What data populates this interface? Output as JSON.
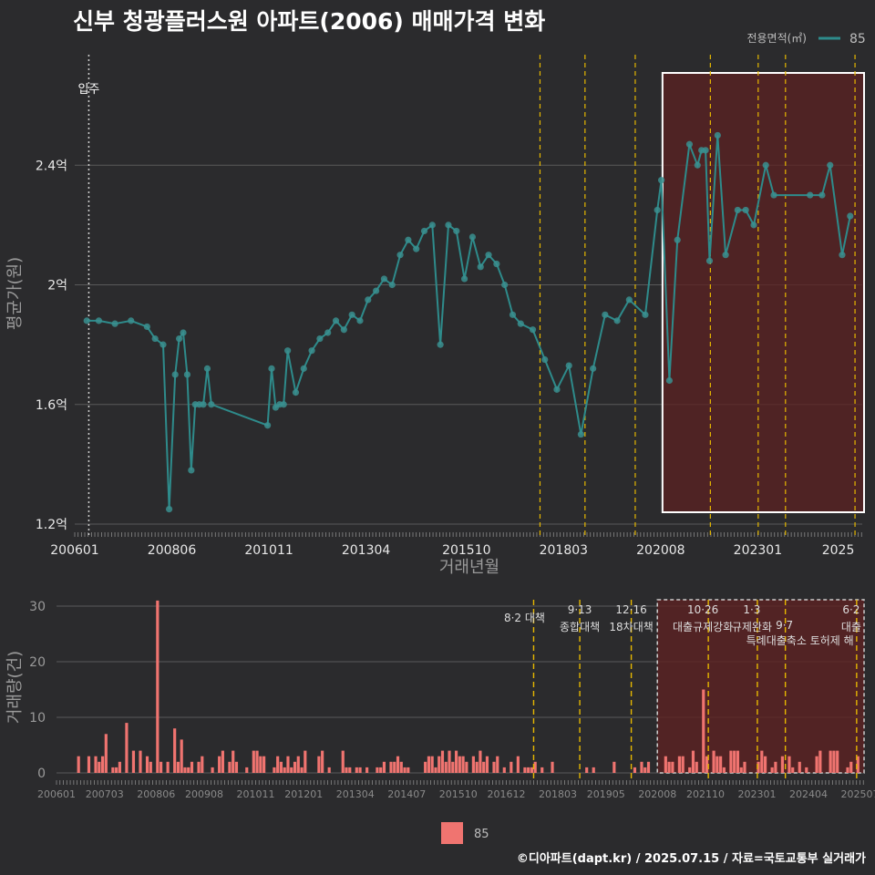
{
  "title": "신부 청광플러스원 아파트(2006) 매매가격 변화",
  "credit": "©디아파트(dapt.kr) / 2025.07.15 / 자료=국토교통부 실거래가",
  "colors": {
    "background": "#2b2b2d",
    "price_line": "#2e8b8b",
    "price_point": "#3a8f8f",
    "volume_bar": "#f07470",
    "policy_line": "#e6b800",
    "highlight_fill": "#5c2222",
    "grid": "#5a5a5a"
  },
  "chart_data": [
    {
      "type": "line",
      "title": "신부 청광플러스원 아파트(2006) 매매가격 변화",
      "xlabel": "거래년월",
      "ylabel": "평균가(원)",
      "x_ticks": [
        "200601",
        "200806",
        "201011",
        "201304",
        "201510",
        "201803",
        "202008",
        "202301",
        "2025"
      ],
      "y_ticks": [
        "1.2억",
        "1.6억",
        "2억",
        "2.4억"
      ],
      "ylim": [
        1.2,
        2.8
      ],
      "y_unit": "억",
      "legend": {
        "title": "전용면적(㎡)",
        "items": [
          "85"
        ],
        "position": "top-right"
      },
      "annotation_move_in": {
        "label": "입주",
        "x": "2006.05"
      },
      "series": [
        {
          "name": "85",
          "x": [
            2006.3,
            2006.6,
            2007.0,
            2007.4,
            2007.8,
            2008.0,
            2008.2,
            2008.35,
            2008.5,
            2008.6,
            2008.7,
            2008.8,
            2008.9,
            2009.0,
            2009.1,
            2009.2,
            2009.3,
            2009.4,
            2010.8,
            2010.9,
            2011.0,
            2011.1,
            2011.2,
            2011.3,
            2011.5,
            2011.7,
            2011.9,
            2012.1,
            2012.3,
            2012.5,
            2012.7,
            2012.9,
            2013.1,
            2013.3,
            2013.5,
            2013.7,
            2013.9,
            2014.1,
            2014.3,
            2014.5,
            2014.7,
            2014.9,
            2015.1,
            2015.3,
            2015.5,
            2015.7,
            2015.9,
            2016.1,
            2016.3,
            2016.5,
            2016.7,
            2016.9,
            2017.1,
            2017.4,
            2017.7,
            2018.0,
            2018.3,
            2018.6,
            2018.9,
            2019.2,
            2019.5,
            2019.8,
            2020.2,
            2020.5,
            2020.6,
            2020.8,
            2021.0,
            2021.3,
            2021.5,
            2021.6,
            2021.7,
            2021.8,
            2022.0,
            2022.2,
            2022.5,
            2022.7,
            2022.9,
            2023.2,
            2023.4,
            2024.3,
            2024.6,
            2024.8,
            2025.1,
            2025.3
          ],
          "values": [
            1.88,
            1.88,
            1.87,
            1.88,
            1.86,
            1.82,
            1.8,
            1.25,
            1.7,
            1.82,
            1.84,
            1.7,
            1.38,
            1.6,
            1.6,
            1.6,
            1.72,
            1.6,
            1.53,
            1.72,
            1.59,
            1.6,
            1.6,
            1.78,
            1.64,
            1.72,
            1.78,
            1.82,
            1.84,
            1.88,
            1.85,
            1.9,
            1.88,
            1.95,
            1.98,
            2.02,
            2.0,
            2.1,
            2.15,
            2.12,
            2.18,
            2.2,
            1.8,
            2.2,
            2.18,
            2.02,
            2.16,
            2.06,
            2.1,
            2.07,
            2.0,
            1.9,
            1.87,
            1.85,
            1.75,
            1.65,
            1.73,
            1.5,
            1.72,
            1.9,
            1.88,
            1.95,
            1.9,
            2.25,
            2.35,
            1.68,
            2.15,
            2.47,
            2.4,
            2.45,
            2.45,
            2.08,
            2.5,
            2.1,
            2.25,
            2.25,
            2.2,
            2.4,
            2.3,
            2.3,
            2.3,
            2.4,
            2.1,
            2.23
          ]
        }
      ],
      "highlight": {
        "from": "202008",
        "to": "2025"
      }
    },
    {
      "type": "bar",
      "ylabel": "거래량(건)",
      "y_ticks": [
        "0",
        "10",
        "20",
        "30"
      ],
      "ylim": [
        0,
        33
      ],
      "x_ticks": [
        "200601",
        "200703",
        "200806",
        "200908",
        "201011",
        "201201",
        "201304",
        "201407",
        "201510",
        "201612",
        "201803",
        "201905",
        "202008",
        "202110",
        "202301",
        "202404",
        "202507"
      ],
      "legend": {
        "items": [
          "85"
        ],
        "position": "bottom"
      },
      "peaks": [
        {
          "x": 2008.4,
          "value": 31
        },
        {
          "x": 2021.7,
          "value": 15
        },
        {
          "x": 2008.8,
          "value": 8
        },
        {
          "x": 2007.7,
          "value": 9
        },
        {
          "x": 2007.2,
          "value": 7
        },
        {
          "x": 2009.0,
          "value": 6
        }
      ],
      "highlight": {
        "from": "202008",
        "to": "202507"
      }
    }
  ],
  "policies": [
    {
      "x": 2017.58,
      "date": "8·2",
      "label": "대책"
    },
    {
      "x": 2018.7,
      "date": "9·13",
      "label": "종합대책"
    },
    {
      "x": 2019.95,
      "date": "12·16",
      "label": "18차대책"
    },
    {
      "x": 2021.82,
      "date": "10·26",
      "label": "대출규제강화"
    },
    {
      "x": 2023.01,
      "date": "1·3",
      "label": "규제완화"
    },
    {
      "x": 2023.69,
      "date": "9·7",
      "label": "특례대출축소 토허제 해"
    },
    {
      "x": 2025.42,
      "date": "6·2",
      "label": "대출"
    }
  ]
}
